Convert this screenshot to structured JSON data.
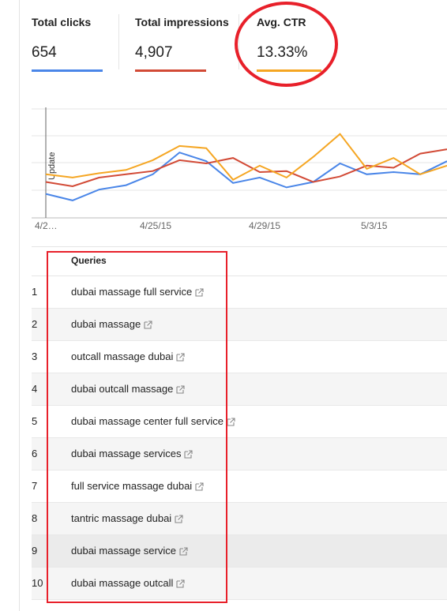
{
  "metrics": [
    {
      "label": "Total clicks",
      "value": "654",
      "color": "#4a86e8"
    },
    {
      "label": "Total impressions",
      "value": "4,907",
      "color": "#d24a36"
    },
    {
      "label": "Avg. CTR",
      "value": "13.33%",
      "color": "#f5a623"
    }
  ],
  "annotation_color": "#e8202a",
  "chart_data": {
    "type": "line",
    "x_tick_labels": [
      "4/2…",
      "4/25/15",
      "4/29/15",
      "5/3/15"
    ],
    "annotation_label": "Update",
    "grid": true,
    "legend": "none",
    "series": [
      {
        "color": "#4a86e8",
        "values": [
          0.22,
          0.16,
          0.26,
          0.3,
          0.4,
          0.6,
          0.52,
          0.32,
          0.37,
          0.28,
          0.33,
          0.5,
          0.4,
          0.42,
          0.4,
          0.52
        ]
      },
      {
        "color": "#d24a36",
        "values": [
          0.33,
          0.29,
          0.37,
          0.4,
          0.43,
          0.53,
          0.5,
          0.55,
          0.42,
          0.43,
          0.33,
          0.38,
          0.48,
          0.46,
          0.59,
          0.63
        ]
      },
      {
        "color": "#f5a623",
        "values": [
          0.4,
          0.37,
          0.41,
          0.44,
          0.53,
          0.66,
          0.64,
          0.35,
          0.48,
          0.37,
          0.56,
          0.77,
          0.45,
          0.55,
          0.4,
          0.48
        ]
      }
    ]
  },
  "table": {
    "header": "Queries",
    "rows": [
      {
        "num": "1",
        "query": "dubai massage full service"
      },
      {
        "num": "2",
        "query": "dubai massage"
      },
      {
        "num": "3",
        "query": "outcall massage dubai"
      },
      {
        "num": "4",
        "query": "dubai outcall massage"
      },
      {
        "num": "5",
        "query": "dubai massage center full service"
      },
      {
        "num": "6",
        "query": "dubai massage services"
      },
      {
        "num": "7",
        "query": "full service massage dubai"
      },
      {
        "num": "8",
        "query": "tantric massage dubai"
      },
      {
        "num": "9",
        "query": "dubai massage service"
      },
      {
        "num": "10",
        "query": "dubai massage outcall"
      }
    ],
    "icon": "external-link-icon"
  }
}
